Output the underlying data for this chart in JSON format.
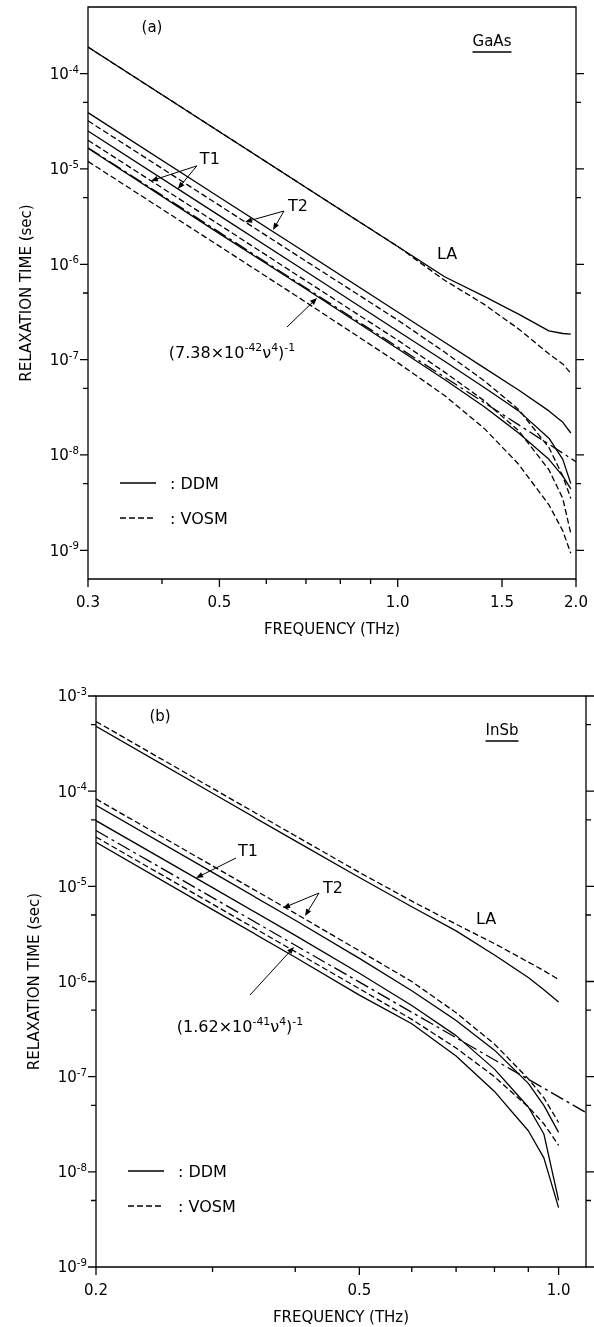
{
  "chart_data": [
    {
      "type": "line",
      "title": "(a)",
      "subtitle": "GaAs",
      "xlabel": "FREQUENCY (THz)",
      "ylabel": "RELAXATION TIME (sec)",
      "log": "xy",
      "legend": "bottom left",
      "xlim": [
        0.3,
        2.0
      ],
      "xticks": [
        0.3,
        {
          "value": 0.4,
          "label": null
        },
        0.5,
        {
          "value": 0.6,
          "label": null
        },
        {
          "value": 0.7,
          "label": null
        },
        {
          "value": 0.8,
          "label": null
        },
        {
          "value": 0.9,
          "label": null
        },
        {
          "value": 1.0,
          "label": "1.0"
        },
        1.5,
        {
          "value": 2.0,
          "label": "2.0"
        }
      ],
      "ylim": [
        5e-10,
        0.0005
      ],
      "yticks": [
        {
          "value": 1e-09,
          "label": "10$^{-9}$"
        },
        {
          "value": 5e-09,
          "label": null
        },
        {
          "value": 1e-08,
          "label": "10$^{-8}$"
        },
        {
          "value": 5e-08,
          "label": null
        },
        {
          "value": 1e-07,
          "label": "10$^{-7}$"
        },
        {
          "value": 5e-07,
          "label": null
        },
        {
          "value": 1e-06,
          "label": "10$^{-6}$"
        },
        {
          "value": 5e-06,
          "label": null
        },
        {
          "value": 1e-05,
          "label": "10$^{-5}$"
        },
        {
          "value": 5e-05,
          "label": null
        },
        {
          "value": 0.0001,
          "label": "10$^{-4}$"
        }
      ],
      "series": [
        {
          "name": ": DDM",
          "color": "#000000",
          "line_style": "solid",
          "x": [
            0.3,
            0.5,
            0.7,
            1.0,
            1.2,
            1.4,
            1.6,
            1.8,
            1.9,
            1.96
          ],
          "values": [
            0.00019,
            2.46e-05,
            6.4e-06,
            1.54e-06,
            7.4e-07,
            4.6e-07,
            3e-07,
            2e-07,
            1.88e-07,
            1.85e-07
          ]
        },
        {
          "name": ": VOSM",
          "color": "#000000",
          "line_style": "dashed",
          "x": [
            0.3,
            0.5,
            0.7,
            1.0,
            1.2,
            1.4,
            1.6,
            1.8,
            1.9,
            1.96
          ],
          "values": [
            0.00019,
            2.46e-05,
            6.4e-06,
            1.54e-06,
            6.8e-07,
            3.8e-07,
            2.1e-07,
            1.15e-07,
            9e-08,
            7.2e-08
          ]
        },
        {
          "color": "#000000",
          "line_style": "solid",
          "x": [
            0.3,
            0.5,
            0.7,
            1.0,
            1.2,
            1.4,
            1.6,
            1.8,
            1.9,
            1.96
          ],
          "values": [
            3.9e-05,
            5.05e-06,
            1.32e-06,
            3.16e-07,
            1.52e-07,
            8.2e-08,
            4.8e-08,
            2.9e-08,
            2.2e-08,
            1.7e-08
          ]
        },
        {
          "color": "#000000",
          "line_style": "dashed",
          "x": [
            0.3,
            0.5,
            0.7,
            1.0,
            1.2,
            1.4,
            1.6,
            1.8,
            1.9,
            1.96
          ],
          "values": [
            3.2e-05,
            4.15e-06,
            1.08e-06,
            2.6e-07,
            1.2e-07,
            6e-08,
            3e-08,
            1.2e-08,
            6e-09,
            3.5e-09
          ]
        },
        {
          "color": "#000000",
          "line_style": "solid",
          "x": [
            0.3,
            0.5,
            0.7,
            1.0,
            1.2,
            1.4,
            1.6,
            1.8,
            1.9,
            1.96
          ],
          "values": [
            2.5e-05,
            3.24e-06,
            8.4e-07,
            2e-07,
            9.6e-08,
            5.1e-08,
            2.9e-08,
            1.5e-08,
            9e-09,
            5e-09
          ]
        },
        {
          "color": "#000000",
          "line_style": "dashed",
          "x": [
            0.3,
            0.5,
            0.7,
            1.0,
            1.2,
            1.4,
            1.6,
            1.8,
            1.9,
            1.96
          ],
          "values": [
            2e-05,
            2.6e-06,
            6.7e-07,
            1.6e-07,
            7.4e-08,
            3.7e-08,
            1.8e-08,
            7e-09,
            3.5e-09,
            1.5e-09
          ]
        },
        {
          "color": "#000000",
          "line_style": "solid",
          "x": [
            0.3,
            0.5,
            0.7,
            1.0,
            1.2,
            1.4,
            1.6,
            1.8,
            1.9,
            1.96
          ],
          "values": [
            1.65e-05,
            2.1e-06,
            5.5e-07,
            1.3e-07,
            6.2e-08,
            3.2e-08,
            1.7e-08,
            9e-09,
            6e-09,
            4.4e-09
          ]
        },
        {
          "color": "#000000",
          "line_style": "dashed",
          "x": [
            0.3,
            0.5,
            0.7,
            1.0,
            1.2,
            1.4,
            1.6,
            1.8,
            1.9,
            1.96
          ],
          "values": [
            1.2e-05,
            1.55e-06,
            4e-07,
            9.3e-08,
            4.2e-08,
            1.9e-08,
            8e-09,
            3e-09,
            1.6e-09,
            9.3e-10
          ]
        },
        {
          "color": "#000000",
          "line_style": "dashdot",
          "x": [
            0.3,
            2.0
          ],
          "values": [
            1.67e-05,
            8.5e-09
          ]
        }
      ],
      "annotations": [
        {
          "text": "T1",
          "x": 0.383,
          "y": 7.5e-06
        },
        "T2",
        "LA",
        "(7.38×10$^{-42}$ν$^{4}$)$^{-1}$"
      ]
    },
    {
      "type": "line",
      "title": "(b)",
      "subtitle": "InSb",
      "xlabel": "FREQUENCY (THz)",
      "ylabel": "RELAXATION TIME (sec)",
      "log": "xy",
      "legend": "bottom left",
      "xlim": [
        0.2,
        1.1
      ],
      "xticks": [
        0.2,
        {
          "value": 0.3,
          "label": null
        },
        {
          "value": 0.4,
          "label": null
        },
        0.5,
        {
          "value": 0.6,
          "label": null
        },
        {
          "value": 0.7,
          "label": null
        },
        {
          "value": 0.8,
          "label": null
        },
        {
          "value": 0.9,
          "label": null
        },
        {
          "value": 1.0,
          "label": "1.0"
        }
      ],
      "ylim": [
        1e-09,
        0.001
      ],
      "yticks": [
        {
          "value": 1e-09,
          "label": "10$^{-9}$"
        },
        {
          "value": 5e-09,
          "label": null
        },
        {
          "value": 1e-08,
          "label": "10$^{-8}$"
        },
        {
          "value": 5e-08,
          "label": null
        },
        {
          "value": 1e-07,
          "label": "10$^{-7}$"
        },
        {
          "value": 5e-07,
          "label": null
        },
        {
          "value": 1e-06,
          "label": "10$^{-6}$"
        },
        {
          "value": 5e-06,
          "label": null
        },
        {
          "value": 1e-05,
          "label": "10$^{-5}$"
        },
        {
          "value": 5e-05,
          "label": null
        },
        {
          "value": 0.0001,
          "label": "10$^{-4}$"
        },
        {
          "value": 0.0005,
          "label": null
        },
        {
          "value": 0.001,
          "label": "10$^{-3}$"
        }
      ],
      "series": [
        {
          "name": ": DDM",
          "color": "#000000",
          "line_style": "solid",
          "x": [
            0.2,
            0.3,
            0.4,
            0.5,
            0.6,
            0.7,
            0.8,
            0.9,
            0.95,
            1.0
          ],
          "values": [
            0.00048,
            9.5e-05,
            3e-05,
            1.24e-05,
            6.1e-06,
            3.4e-06,
            1.9e-06,
            1.1e-06,
            8.2e-07,
            6.1e-07
          ]
        },
        {
          "name": ": VOSM",
          "color": "#000000",
          "line_style": "dashed",
          "x": [
            0.2,
            0.3,
            0.4,
            0.5,
            0.6,
            0.7,
            0.8,
            0.9,
            0.95,
            1.0
          ],
          "values": [
            0.00054,
            0.000107,
            3.4e-05,
            1.4e-05,
            7e-06,
            4e-06,
            2.5e-06,
            1.6e-06,
            1.3e-06,
            1.05e-06
          ]
        },
        {
          "color": "#000000",
          "line_style": "solid",
          "x": [
            0.2,
            0.3,
            0.4,
            0.5,
            0.6,
            0.7,
            0.8,
            0.9,
            0.95,
            1.0
          ],
          "values": [
            7.1e-05,
            1.4e-05,
            4.4e-06,
            1.75e-06,
            8e-07,
            3.9e-07,
            1.9e-07,
            8.5e-08,
            5e-08,
            2.6e-08
          ]
        },
        {
          "color": "#000000",
          "line_style": "dashed",
          "x": [
            0.2,
            0.3,
            0.4,
            0.5,
            0.6,
            0.7,
            0.8,
            0.9,
            0.95,
            1.0
          ],
          "values": [
            8.3e-05,
            1.64e-05,
            5.2e-06,
            2.1e-06,
            1e-06,
            4.7e-07,
            2.2e-07,
            9.5e-08,
            6e-08,
            3.3e-08
          ]
        },
        {
          "color": "#000000",
          "line_style": "solid",
          "x": [
            0.2,
            0.3,
            0.4,
            0.5,
            0.6,
            0.7,
            0.8,
            0.9,
            0.95,
            1.0
          ],
          "values": [
            4.9e-05,
            9.7e-06,
            3.05e-06,
            1.22e-06,
            5.6e-07,
            2.7e-07,
            1.2e-07,
            4.8e-08,
            2.5e-08,
            5e-09
          ]
        },
        {
          "color": "#000000",
          "line_style": "solid",
          "x": [
            0.2,
            0.3,
            0.4,
            0.5,
            0.6,
            0.7,
            0.8,
            0.9,
            0.95,
            1.0
          ],
          "values": [
            2.9e-05,
            5.7e-06,
            1.8e-06,
            7.2e-07,
            3.6e-07,
            1.65e-07,
            7e-08,
            2.7e-08,
            1.4e-08,
            4.2e-09
          ]
        },
        {
          "color": "#000000",
          "line_style": "dashed",
          "x": [
            0.2,
            0.3,
            0.4,
            0.5,
            0.6,
            0.7,
            0.8,
            0.9,
            0.95,
            1.0
          ],
          "values": [
            3.3e-05,
            6.5e-06,
            2.06e-06,
            8.4e-07,
            4e-07,
            2e-07,
            1e-07,
            4.8e-08,
            3.2e-08,
            1.9e-08
          ]
        },
        {
          "color": "#000000",
          "line_style": "dashdot",
          "x": [
            0.2,
            1.1
          ],
          "values": [
            3.86e-05,
            4.2e-08
          ]
        }
      ],
      "annotations": [
        "T1",
        "T2",
        "LA",
        "(1.62×10$^{-41}$ν$^{4}$)$^{-1}$"
      ]
    }
  ]
}
